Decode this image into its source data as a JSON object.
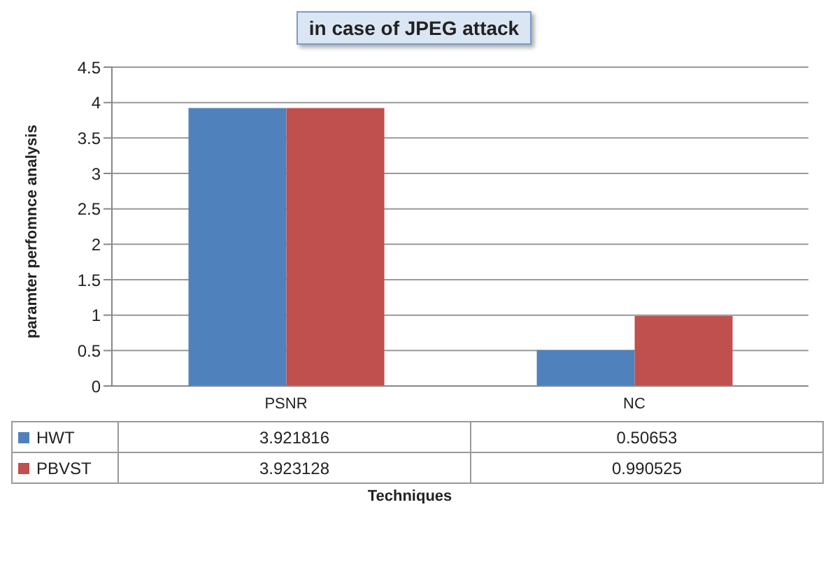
{
  "chart_data": {
    "type": "bar",
    "title": "in case of JPEG attack",
    "xlabel": "Techniques",
    "ylabel": "paramter perfomnce analysis",
    "categories": [
      "PSNR",
      "NC"
    ],
    "series": [
      {
        "name": "HWT",
        "color": "#4f81bd",
        "values": [
          3.921816,
          0.50653
        ]
      },
      {
        "name": "PBVST",
        "color": "#c0504d",
        "values": [
          3.923128,
          0.990525
        ]
      }
    ],
    "ylim": [
      0,
      4.5
    ],
    "yticks": [
      0,
      0.5,
      1,
      1.5,
      2,
      2.5,
      3,
      3.5,
      4,
      4.5
    ],
    "grid": "y",
    "legend": "bottom",
    "data_labels": true
  }
}
